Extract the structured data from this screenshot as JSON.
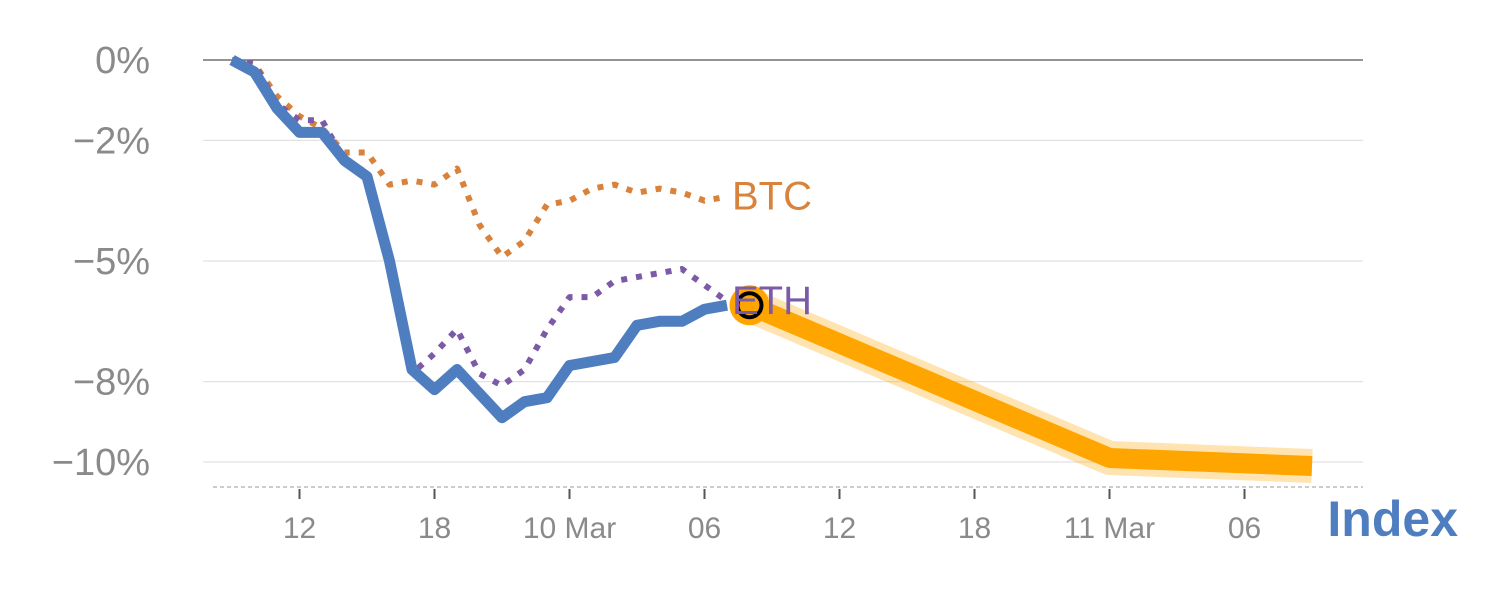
{
  "chart_data": {
    "type": "line",
    "ylim": [
      -10.5,
      0
    ],
    "y_ticks": [
      {
        "value": 0,
        "label": "0%"
      },
      {
        "value": -2,
        "label": "−2%"
      },
      {
        "value": -5,
        "label": "−5%"
      },
      {
        "value": -8,
        "label": "−8%"
      },
      {
        "value": -10,
        "label": "−10%"
      }
    ],
    "x_range": [
      0,
      53
    ],
    "x_ticks": [
      {
        "value": 4,
        "label": "12"
      },
      {
        "value": 10,
        "label": "18"
      },
      {
        "value": 16,
        "label": "10 Mar"
      },
      {
        "value": 22,
        "label": "06"
      },
      {
        "value": 28,
        "label": "12"
      },
      {
        "value": 34,
        "label": "18"
      },
      {
        "value": 40,
        "label": "11 Mar"
      },
      {
        "value": 46,
        "label": "06"
      }
    ],
    "grid": true,
    "series": [
      {
        "name": "BTC",
        "style": "dotted",
        "color": "#d9823b",
        "x": [
          1,
          2,
          3,
          4,
          5,
          6,
          7,
          8,
          9,
          10,
          11,
          12,
          13,
          14,
          15,
          16,
          17,
          18,
          19,
          20,
          21,
          22,
          23
        ],
        "values": [
          0,
          -0.1,
          -0.9,
          -1.4,
          -1.7,
          -2.3,
          -2.3,
          -3.1,
          -3.0,
          -3.1,
          -2.7,
          -4.1,
          -4.9,
          -4.5,
          -3.6,
          -3.5,
          -3.2,
          -3.1,
          -3.3,
          -3.2,
          -3.3,
          -3.5,
          -3.4
        ]
      },
      {
        "name": "ETH",
        "style": "dotted",
        "color": "#7b5aa6",
        "x": [
          1,
          2,
          3,
          4,
          5,
          6,
          7,
          8,
          9,
          10,
          11,
          12,
          13,
          14,
          15,
          16,
          17,
          18,
          19,
          20,
          21,
          22,
          23
        ],
        "values": [
          0,
          -0.1,
          -1.1,
          -1.5,
          -1.5,
          -2.5,
          -2.8,
          -5.0,
          -7.8,
          -7.3,
          -6.7,
          -7.8,
          -8.1,
          -7.7,
          -6.7,
          -5.9,
          -5.9,
          -5.5,
          -5.4,
          -5.3,
          -5.2,
          -5.6,
          -6.0
        ]
      },
      {
        "name": "Index",
        "style": "solid",
        "color": "#4e7ec0",
        "x": [
          1,
          2,
          3,
          4,
          5,
          6,
          7,
          8,
          9,
          10,
          11,
          12,
          13,
          14,
          15,
          16,
          17,
          18,
          19,
          20,
          21,
          22,
          23
        ],
        "values": [
          0,
          -0.3,
          -1.2,
          -1.8,
          -1.8,
          -2.5,
          -2.9,
          -5.0,
          -7.7,
          -8.2,
          -7.7,
          -8.3,
          -8.9,
          -8.5,
          -8.4,
          -7.6,
          -7.5,
          -7.4,
          -6.6,
          -6.5,
          -6.5,
          -6.2,
          -6.1
        ]
      }
    ],
    "forecast": {
      "color": "#ffa500",
      "x": [
        24,
        40,
        49
      ],
      "values": [
        -6.1,
        -9.9,
        -10.1
      ]
    },
    "index_label": "Index"
  }
}
